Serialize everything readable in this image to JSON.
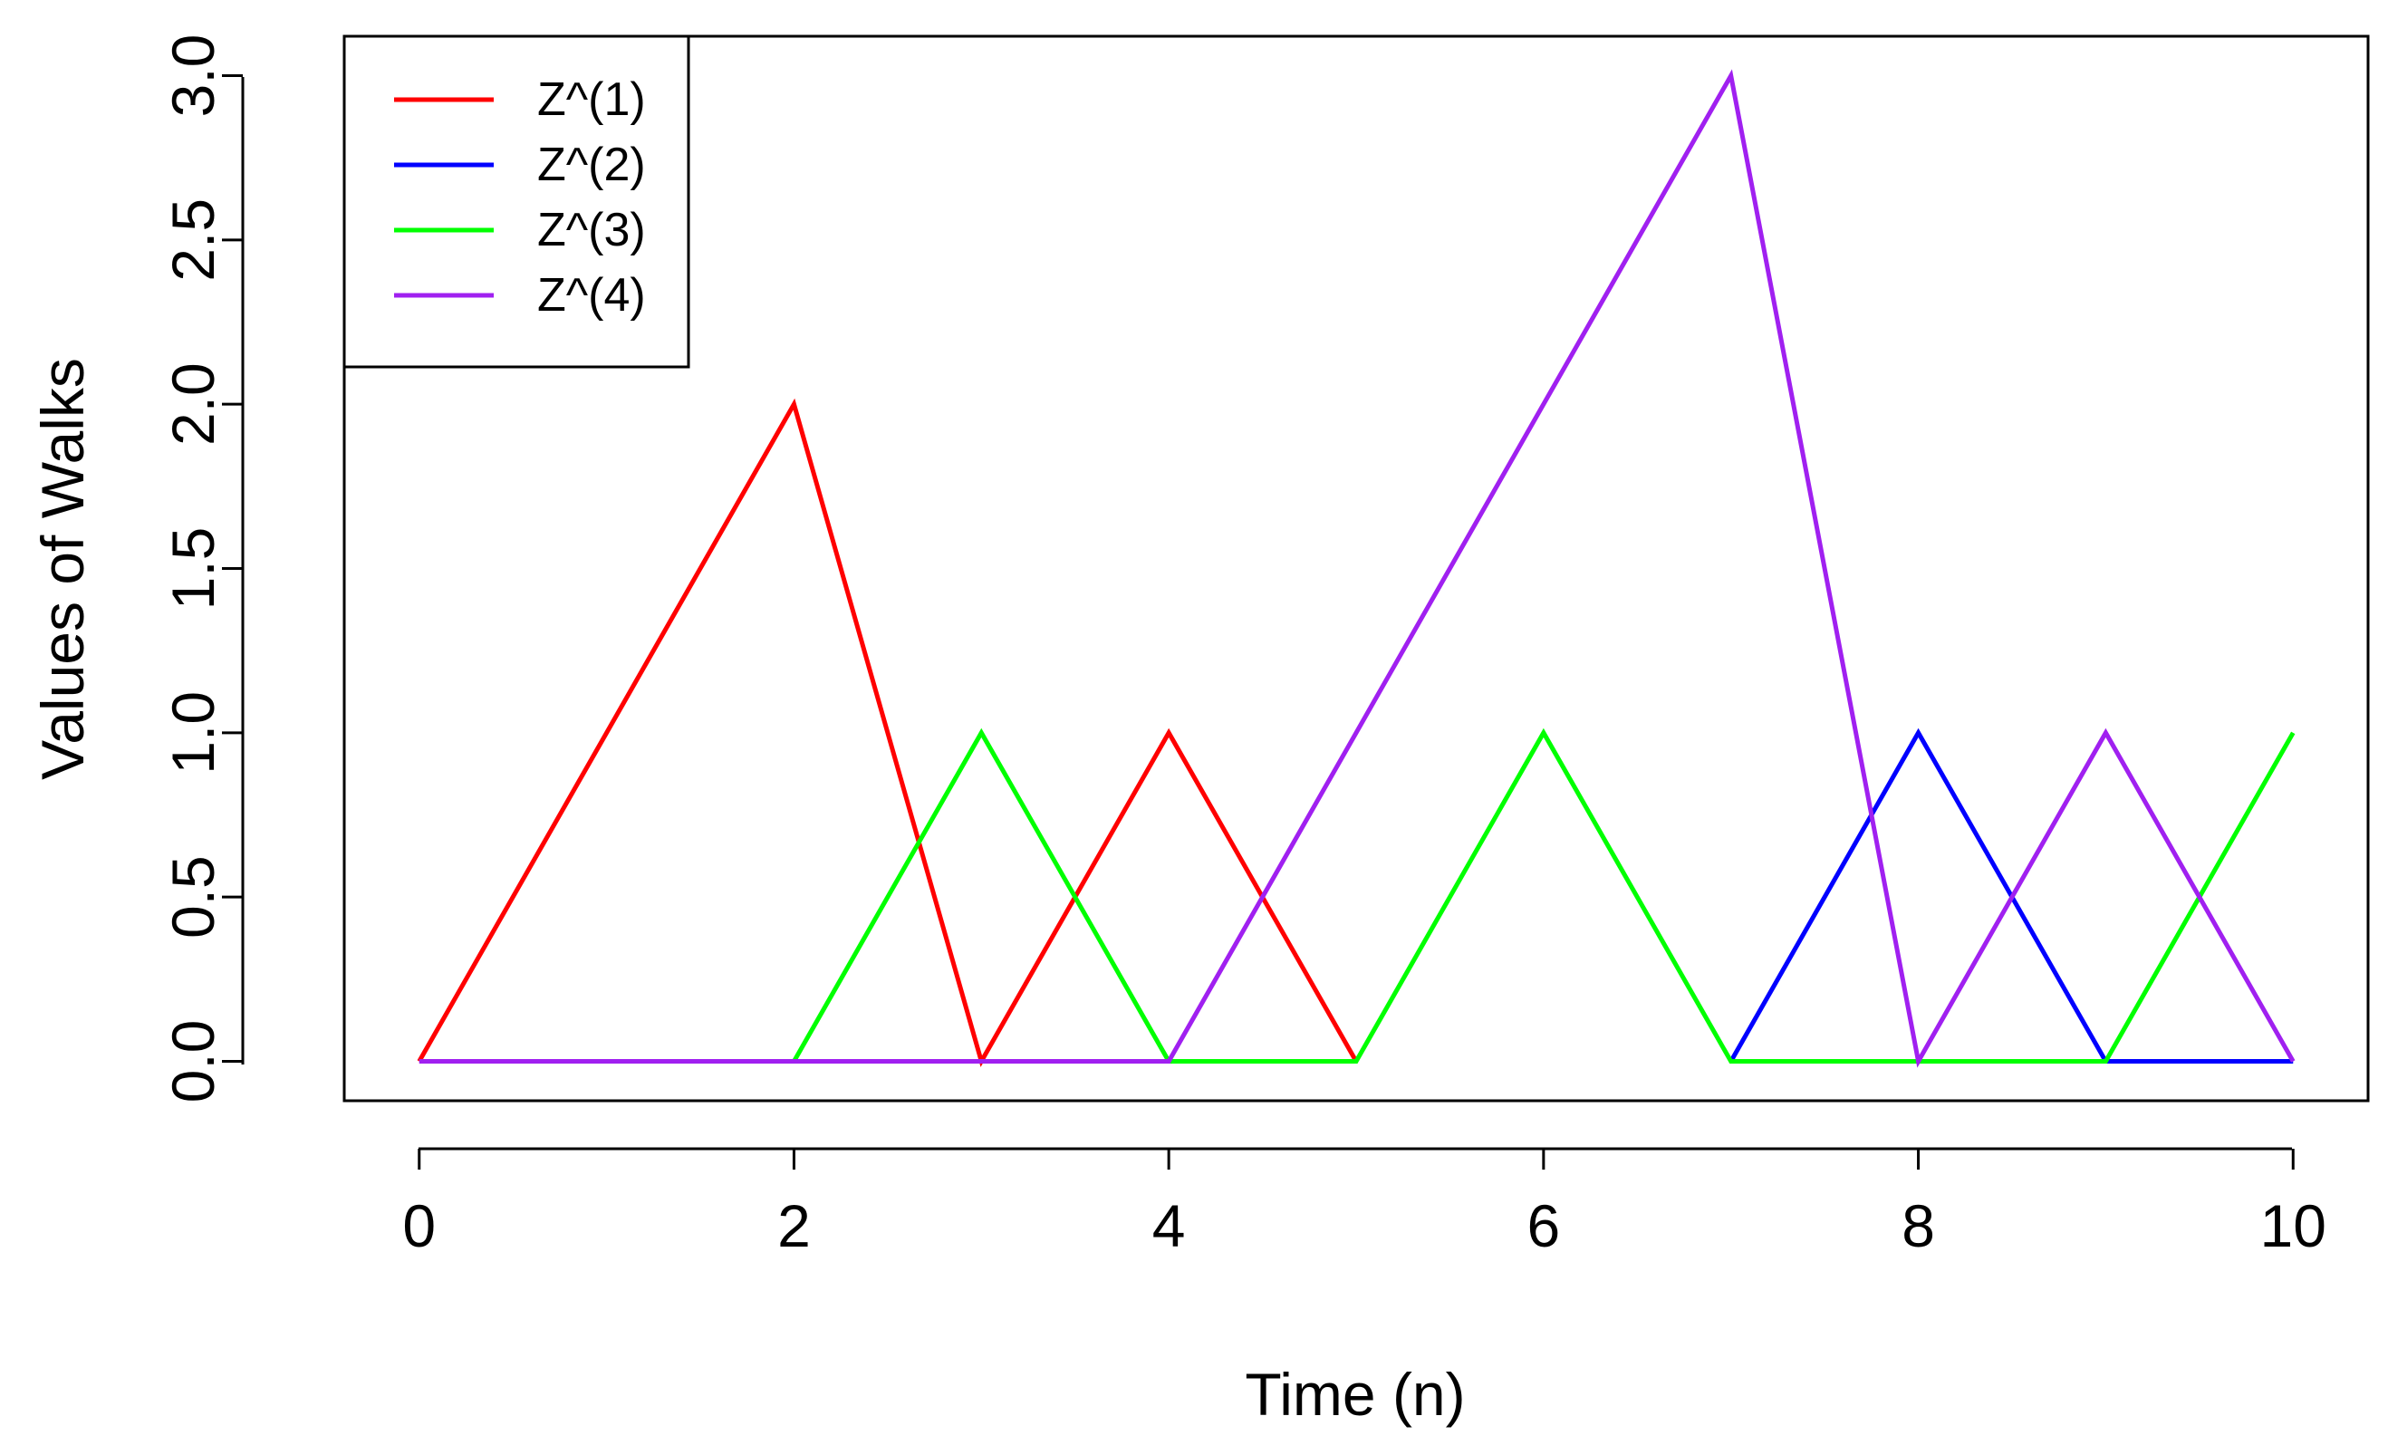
{
  "chart_data": {
    "type": "line",
    "title": "",
    "xlabel": "Time (n)",
    "ylabel": "Values of Walks",
    "xlim": [
      -0.4,
      10.4
    ],
    "ylim": [
      -0.12,
      3.12
    ],
    "x_ticks": [
      0,
      2,
      4,
      6,
      8,
      10
    ],
    "x_tick_labels": [
      "0",
      "2",
      "4",
      "6",
      "8",
      "10"
    ],
    "y_ticks": [
      0,
      0.5,
      1,
      1.5,
      2,
      2.5,
      3
    ],
    "y_tick_labels": [
      "0.0",
      "0.5",
      "1.0",
      "1.5",
      "2.0",
      "2.5",
      "3.0"
    ],
    "grid": false,
    "legend_position": "top-left",
    "x": [
      0,
      1,
      2,
      3,
      4,
      5,
      6,
      7,
      8,
      9,
      10
    ],
    "series": [
      {
        "name": "Z^(1)",
        "color": "#ff0000",
        "values": [
          0,
          1,
          2,
          0,
          1,
          0,
          null,
          null,
          null,
          null,
          null
        ]
      },
      {
        "name": "Z^(2)",
        "color": "#0000ff",
        "values": [
          null,
          null,
          null,
          null,
          null,
          null,
          null,
          0,
          1,
          0,
          0
        ]
      },
      {
        "name": "Z^(3)",
        "color": "#00ff00",
        "values": [
          null,
          null,
          0,
          1,
          0,
          0,
          1,
          0,
          0,
          0,
          1
        ]
      },
      {
        "name": "Z^(4)",
        "color": "#a020f0",
        "values": [
          0,
          0,
          0,
          0,
          0,
          1,
          2,
          3,
          0,
          1,
          0
        ]
      }
    ]
  }
}
